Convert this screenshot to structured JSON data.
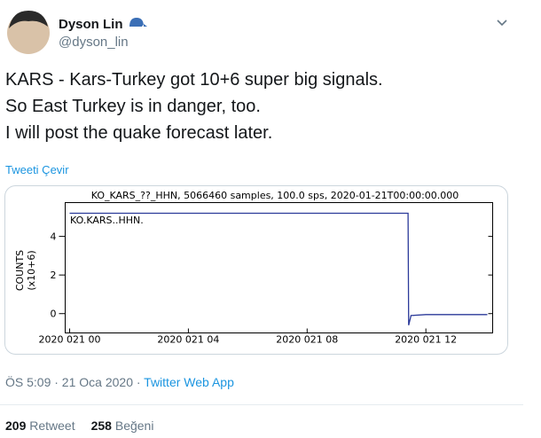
{
  "header": {
    "name": "Dyson Lin",
    "handle": "@dyson_lin"
  },
  "tweet": {
    "lines": [
      "KARS - Kars-Turkey got 10+6 super big signals.",
      "So East Turkey is in danger, too.",
      "I will post the quake forecast later."
    ],
    "translate": "Tweeti Çevir"
  },
  "chart_data": {
    "type": "line",
    "title": "KO_KARS_??_HHN, 5066460 samples, 100.0 sps, 2020-01-21T00:00:00.000",
    "annotation": "KO.KARS..HHN.",
    "ylabel": [
      "COUNTS",
      "(x10+6)"
    ],
    "x": [
      0,
      11.4,
      11.42,
      11.5,
      12,
      14.07
    ],
    "values": [
      5.2,
      5.2,
      -0.6,
      -0.1,
      -0.05,
      -0.05
    ],
    "color": "#2b3a9a",
    "xlim": [
      -0.15,
      14.25
    ],
    "xticks": [
      {
        "value": 0,
        "label": "2020 021 00"
      },
      {
        "value": 4,
        "label": "2020 021 04"
      },
      {
        "value": 8,
        "label": "2020 021 08"
      },
      {
        "value": 12,
        "label": "2020 021 12"
      }
    ],
    "ylim": [
      -1.0,
      5.75
    ],
    "yticks": [
      0,
      2,
      4
    ]
  },
  "footer": {
    "time": "ÖS 5:09 · 21 Oca 2020 · ",
    "source": "Twitter Web App",
    "retweets": 209,
    "retweets_label": " Retweet",
    "likes": 258,
    "likes_label": " Beğeni"
  }
}
